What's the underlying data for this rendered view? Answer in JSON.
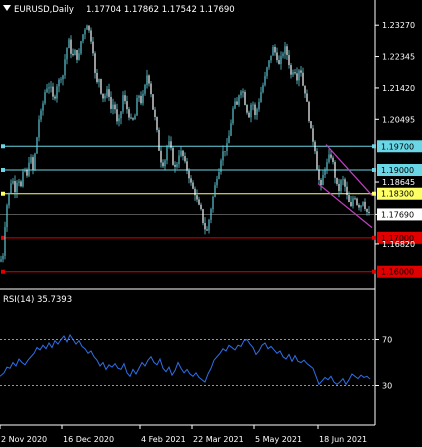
{
  "header": {
    "symbol_label": "EURUSD,Daily",
    "ohlc": "1.17704 1.17862 1.17542 1.17690"
  },
  "rsi_panel": {
    "label": "RSI(14) 35.7393"
  },
  "colors": {
    "background": "#000000",
    "grid": "#ffffff",
    "candle": "#5ec9d6",
    "line_cyan": "#6ad6e6",
    "line_yellow": "#ffff66",
    "line_red": "#e00000",
    "channel": "#c040c0",
    "rsi_line": "#2f6fe8",
    "rsi_levels": "#c8c8c8",
    "axis_text": "#ffffff"
  },
  "chart_data": [
    {
      "type": "candlestick",
      "title": "EURUSD,Daily",
      "ylim": [
        1.1555,
        1.236
      ],
      "price_axis_ticks": [
        "1.23270",
        "1.22345",
        "1.21420",
        "1.20495",
        "1.18645",
        "1.17690",
        "1.16820"
      ],
      "x_ticks": [
        "2 Nov 2020",
        "16 Dec 2020",
        "4 Feb 2021",
        "22 Mar 2021",
        "5 May 2021",
        "18 Jun 2021"
      ],
      "horizontal_levels": [
        {
          "value": 1.197,
          "label": "1.19700",
          "color": "#6ad6e6"
        },
        {
          "value": 1.19,
          "label": "1.19000",
          "color": "#6ad6e6"
        },
        {
          "value": 1.183,
          "label": "1.18300",
          "color": "#ffff66"
        },
        {
          "value": 1.17,
          "label": "1.17000",
          "color": "#e00000"
        },
        {
          "value": 1.16,
          "label": "1.16000",
          "color": "#e00000"
        }
      ],
      "current_price": {
        "value": 1.1769,
        "label": "1.17690"
      },
      "price_path": [
        [
          0,
          1.163
        ],
        [
          3,
          1.165
        ],
        [
          6,
          1.178
        ],
        [
          9,
          1.183
        ],
        [
          12,
          1.188
        ],
        [
          15,
          1.184
        ],
        [
          18,
          1.188
        ],
        [
          21,
          1.185
        ],
        [
          24,
          1.191
        ],
        [
          27,
          1.188
        ],
        [
          30,
          1.195
        ],
        [
          33,
          1.19
        ],
        [
          36,
          1.197
        ],
        [
          39,
          1.205
        ],
        [
          42,
          1.208
        ],
        [
          45,
          1.213
        ],
        [
          48,
          1.215
        ],
        [
          51,
          1.214
        ],
        [
          54,
          1.21
        ],
        [
          57,
          1.215
        ],
        [
          60,
          1.217
        ],
        [
          63,
          1.218
        ],
        [
          66,
          1.225
        ],
        [
          69,
          1.228
        ],
        [
          72,
          1.223
        ],
        [
          75,
          1.225
        ],
        [
          78,
          1.222
        ],
        [
          81,
          1.228
        ],
        [
          84,
          1.231
        ],
        [
          87,
          1.233
        ],
        [
          90,
          1.23
        ],
        [
          93,
          1.225
        ],
        [
          96,
          1.215
        ],
        [
          99,
          1.217
        ],
        [
          102,
          1.211
        ],
        [
          105,
          1.212
        ],
        [
          108,
          1.214
        ],
        [
          111,
          1.208
        ],
        [
          114,
          1.21
        ],
        [
          117,
          1.204
        ],
        [
          120,
          1.205
        ],
        [
          123,
          1.212
        ],
        [
          126,
          1.209
        ],
        [
          129,
          1.206
        ],
        [
          132,
          1.204
        ],
        [
          135,
          1.206
        ],
        [
          138,
          1.213
        ],
        [
          141,
          1.21
        ],
        [
          144,
          1.213
        ],
        [
          147,
          1.218
        ],
        [
          150,
          1.215
        ],
        [
          153,
          1.208
        ],
        [
          156,
          1.204
        ],
        [
          159,
          1.196
        ],
        [
          162,
          1.191
        ],
        [
          165,
          1.193
        ],
        [
          168,
          1.199
        ],
        [
          171,
          1.196
        ],
        [
          174,
          1.19
        ],
        [
          177,
          1.192
        ],
        [
          180,
          1.196
        ],
        [
          183,
          1.194
        ],
        [
          186,
          1.191
        ],
        [
          189,
          1.188
        ],
        [
          192,
          1.185
        ],
        [
          195,
          1.183
        ],
        [
          198,
          1.18
        ],
        [
          201,
          1.178
        ],
        [
          204,
          1.173
        ],
        [
          207,
          1.172
        ],
        [
          210,
          1.177
        ],
        [
          213,
          1.182
        ],
        [
          216,
          1.187
        ],
        [
          219,
          1.19
        ],
        [
          222,
          1.195
        ],
        [
          225,
          1.196
        ],
        [
          228,
          1.198
        ],
        [
          231,
          1.204
        ],
        [
          234,
          1.21
        ],
        [
          237,
          1.209
        ],
        [
          240,
          1.214
        ],
        [
          243,
          1.213
        ],
        [
          246,
          1.208
        ],
        [
          249,
          1.206
        ],
        [
          252,
          1.211
        ],
        [
          255,
          1.206
        ],
        [
          258,
          1.209
        ],
        [
          261,
          1.213
        ],
        [
          264,
          1.216
        ],
        [
          267,
          1.22
        ],
        [
          270,
          1.223
        ],
        [
          273,
          1.226
        ],
        [
          276,
          1.224
        ],
        [
          279,
          1.221
        ],
        [
          282,
          1.224
        ],
        [
          285,
          1.226
        ],
        [
          288,
          1.223
        ],
        [
          291,
          1.218
        ],
        [
          294,
          1.22
        ],
        [
          297,
          1.217
        ],
        [
          300,
          1.221
        ],
        [
          303,
          1.215
        ],
        [
          306,
          1.212
        ],
        [
          309,
          1.205
        ],
        [
          312,
          1.2
        ],
        [
          315,
          1.196
        ],
        [
          318,
          1.188
        ],
        [
          321,
          1.185
        ],
        [
          324,
          1.19
        ],
        [
          327,
          1.192
        ],
        [
          330,
          1.195
        ],
        [
          333,
          1.192
        ],
        [
          336,
          1.186
        ],
        [
          339,
          1.184
        ],
        [
          342,
          1.188
        ],
        [
          345,
          1.185
        ],
        [
          348,
          1.181
        ],
        [
          351,
          1.179
        ],
        [
          354,
          1.183
        ],
        [
          357,
          1.18
        ],
        [
          360,
          1.179
        ],
        [
          363,
          1.181
        ],
        [
          366,
          1.178
        ],
        [
          369,
          1.1769
        ]
      ],
      "channel": {
        "upper": [
          [
            326,
            1.1975
          ],
          [
            372,
            1.1825
          ]
        ],
        "lower": [
          [
            318,
            1.186
          ],
          [
            372,
            1.173
          ]
        ]
      }
    },
    {
      "type": "line",
      "title": "RSI(14) 35.7393",
      "ylim": [
        0,
        100
      ],
      "y_ticks": [
        70,
        30
      ],
      "levels": [
        70,
        30
      ],
      "series": [
        {
          "values": [
            [
              0,
              38
            ],
            [
              4,
              41
            ],
            [
              7,
              46
            ],
            [
              10,
              45
            ],
            [
              13,
              50
            ],
            [
              16,
              47
            ],
            [
              19,
              53
            ],
            [
              22,
              50
            ],
            [
              25,
              48
            ],
            [
              28,
              52
            ],
            [
              31,
              55
            ],
            [
              34,
              58
            ],
            [
              37,
              63
            ],
            [
              40,
              61
            ],
            [
              43,
              65
            ],
            [
              46,
              62
            ],
            [
              49,
              67
            ],
            [
              52,
              63
            ],
            [
              55,
              69
            ],
            [
              58,
              66
            ],
            [
              61,
              70
            ],
            [
              64,
              73
            ],
            [
              67,
              68
            ],
            [
              70,
              74
            ],
            [
              73,
              70
            ],
            [
              76,
              66
            ],
            [
              79,
              69
            ],
            [
              82,
              64
            ],
            [
              85,
              62
            ],
            [
              88,
              58
            ],
            [
              91,
              60
            ],
            [
              94,
              55
            ],
            [
              97,
              52
            ],
            [
              100,
              47
            ],
            [
              103,
              50
            ],
            [
              106,
              44
            ],
            [
              109,
              48
            ],
            [
              112,
              46
            ],
            [
              115,
              49
            ],
            [
              118,
              45
            ],
            [
              121,
              44
            ],
            [
              124,
              49
            ],
            [
              127,
              41
            ],
            [
              130,
              38
            ],
            [
              133,
              44
            ],
            [
              136,
              40
            ],
            [
              139,
              45
            ],
            [
              142,
              50
            ],
            [
              145,
              47
            ],
            [
              148,
              52
            ],
            [
              151,
              55
            ],
            [
              154,
              50
            ],
            [
              157,
              48
            ],
            [
              160,
              53
            ],
            [
              163,
              45
            ],
            [
              166,
              42
            ],
            [
              169,
              46
            ],
            [
              172,
              39
            ],
            [
              175,
              43
            ],
            [
              178,
              50
            ],
            [
              181,
              45
            ],
            [
              184,
              41
            ],
            [
              187,
              44
            ],
            [
              190,
              40
            ],
            [
              193,
              38
            ],
            [
              196,
              41
            ],
            [
              199,
              37
            ],
            [
              202,
              35
            ],
            [
              205,
              33
            ],
            [
              208,
              40
            ],
            [
              211,
              45
            ],
            [
              214,
              52
            ],
            [
              217,
              55
            ],
            [
              220,
              58
            ],
            [
              223,
              62
            ],
            [
              226,
              60
            ],
            [
              229,
              65
            ],
            [
              232,
              63
            ],
            [
              235,
              61
            ],
            [
              238,
              65
            ],
            [
              241,
              64
            ],
            [
              244,
              69
            ],
            [
              247,
              70
            ],
            [
              250,
              66
            ],
            [
              253,
              63
            ],
            [
              256,
              57
            ],
            [
              259,
              60
            ],
            [
              262,
              65
            ],
            [
              265,
              67
            ],
            [
              268,
              62
            ],
            [
              271,
              64
            ],
            [
              274,
              61
            ],
            [
              277,
              58
            ],
            [
              280,
              60
            ],
            [
              283,
              55
            ],
            [
              286,
              53
            ],
            [
              289,
              57
            ],
            [
              292,
              51
            ],
            [
              295,
              56
            ],
            [
              298,
              51
            ],
            [
              301,
              50
            ],
            [
              304,
              52
            ],
            [
              307,
              49
            ],
            [
              310,
              47
            ],
            [
              313,
              45
            ],
            [
              316,
              38
            ],
            [
              319,
              31
            ],
            [
              322,
              34
            ],
            [
              325,
              37
            ],
            [
              328,
              35
            ],
            [
              331,
              38
            ],
            [
              334,
              33
            ],
            [
              337,
              31
            ],
            [
              340,
              33
            ],
            [
              343,
              36
            ],
            [
              346,
              31
            ],
            [
              349,
              35
            ],
            [
              352,
              40
            ],
            [
              355,
              38
            ],
            [
              358,
              36
            ],
            [
              361,
              39
            ],
            [
              364,
              37
            ],
            [
              367,
              38
            ],
            [
              370,
              35.7
            ]
          ]
        }
      ]
    }
  ]
}
